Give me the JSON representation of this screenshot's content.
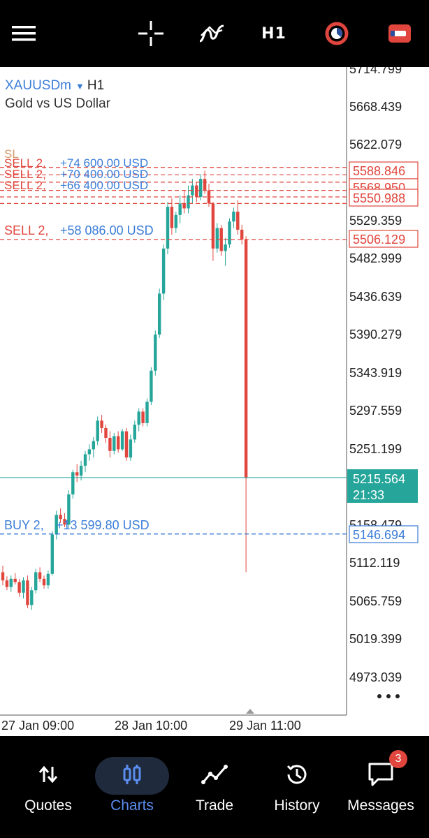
{
  "toolbar": {
    "menu_icon": "hamburger-menu-icon",
    "crosshair_icon": "crosshair-icon",
    "indicators_icon": "indicators-icon",
    "timeframe_label": "H1",
    "objects_icon": "objects-icon",
    "trade_icon": "one-click-trade-icon",
    "colors": {
      "objects": "#e0463d",
      "trade": "#e0463d"
    }
  },
  "chart": {
    "symbol": "XAUUSDm",
    "timeframe": "H1",
    "description": "Gold vs US Dollar",
    "price_axis": [
      "5714.799",
      "5668.439",
      "5622.079",
      "5529.359",
      "5482.999",
      "5436.639",
      "5390.279",
      "5343.919",
      "5297.559",
      "5251.199",
      "5158.479",
      "5112.119",
      "5065.759",
      "5019.399",
      "4973.039"
    ],
    "time_axis": [
      "27 Jan 09:00",
      "28 Jan 10:00",
      "29 Jan 11:00"
    ],
    "current_price": {
      "price": "5215.564",
      "countdown": "21:33",
      "color": "#26a69a"
    },
    "price_labels": [
      {
        "price": "5588.846",
        "color": "#e0463d"
      },
      {
        "price": "5568.950",
        "color": "#e0463d"
      },
      {
        "price": "5550.988",
        "color": "#e0463d"
      },
      {
        "price": "5506.129",
        "color": "#e0463d"
      },
      {
        "price": "5146.694",
        "color": "#3b7dd8"
      }
    ],
    "order_lines": [
      {
        "side": "SELL 2,",
        "profit": "+74 600.00 USD"
      },
      {
        "side": "SELL 2,",
        "profit": "+70 400.00 USD"
      },
      {
        "side": "SELL 2,",
        "profit": "+66 400.00 USD"
      },
      {
        "side": "SELL 2,",
        "profit": "+58 086.00 USD"
      },
      {
        "side": "BUY 2,",
        "profit": "+13 599.80 USD"
      }
    ],
    "partial_label": "SL",
    "more_icon": "more-dots-icon",
    "colors": {
      "bull": "#26a69a",
      "bear": "#e0463d",
      "buy": "#3b7dd8"
    }
  },
  "nav": {
    "items": [
      {
        "label": "Quotes",
        "icon": "quotes-arrows-icon"
      },
      {
        "label": "Charts",
        "icon": "charts-candles-icon"
      },
      {
        "label": "Trade",
        "icon": "trade-line-icon"
      },
      {
        "label": "History",
        "icon": "history-clock-icon"
      },
      {
        "label": "Messages",
        "icon": "messages-chat-icon"
      }
    ],
    "messages_badge": "3",
    "active_color": "#5b8def"
  }
}
